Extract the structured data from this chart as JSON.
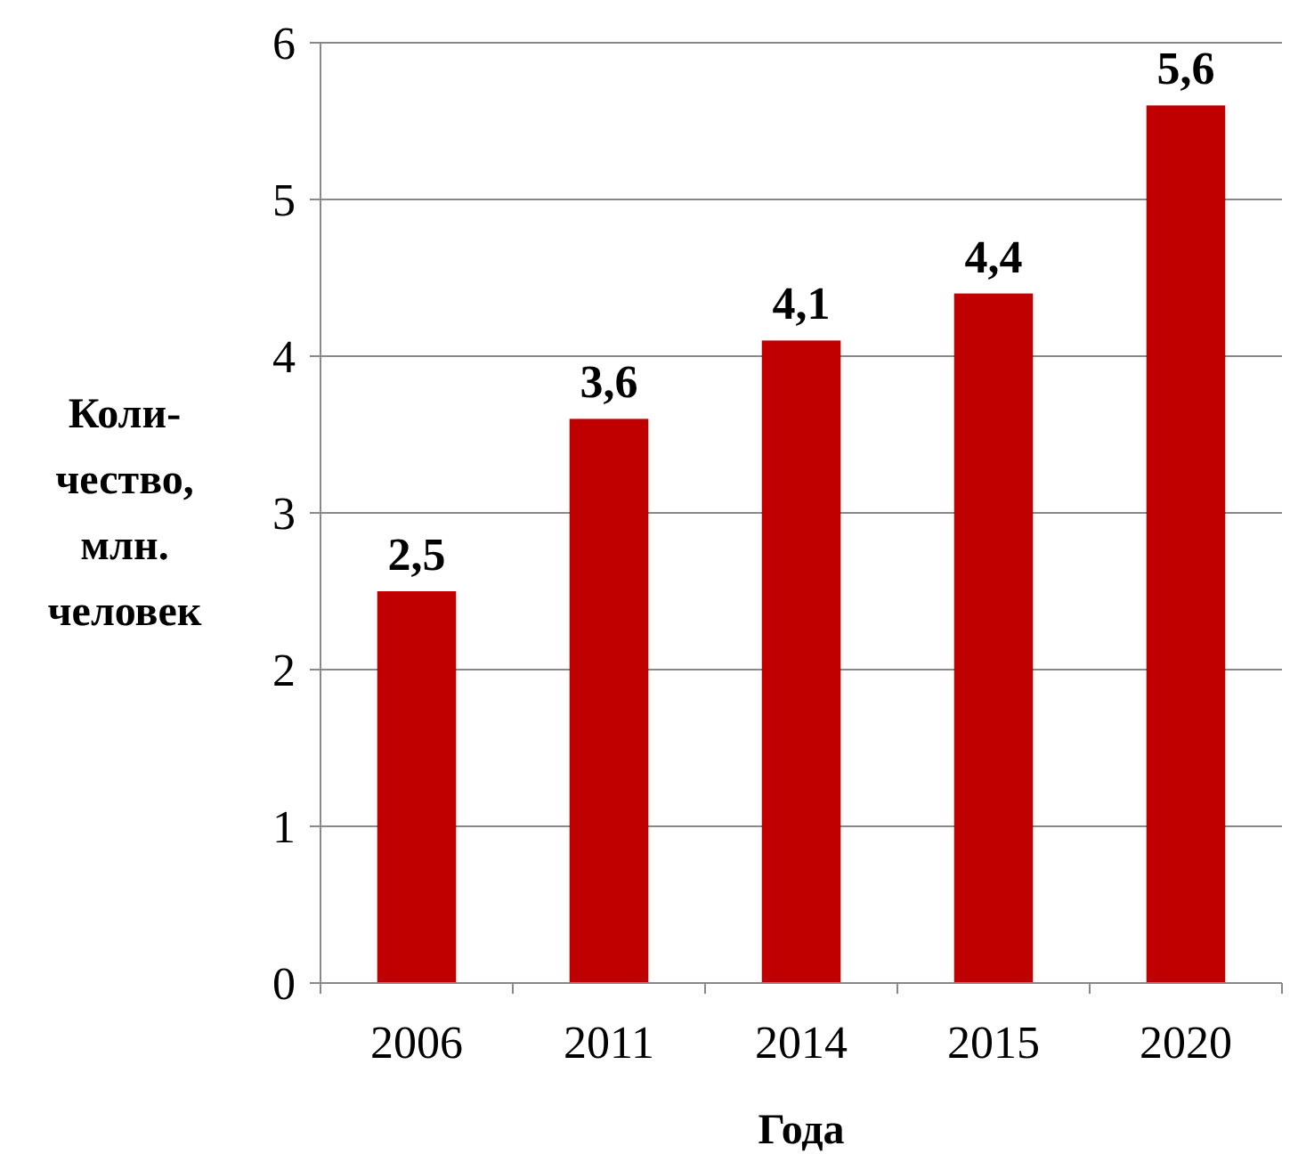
{
  "chart_data": {
    "type": "bar",
    "xlabel": "Года",
    "ylabel": "Коли-\nчество,\nмлн.\nчеловек",
    "categories": [
      "2006",
      "2011",
      "2014",
      "2015",
      "2020"
    ],
    "values": [
      2.5,
      3.6,
      4.1,
      4.4,
      5.6
    ],
    "value_labels": [
      "2,5",
      "3,6",
      "4,1",
      "4,4",
      "5,6"
    ],
    "color": "#c00000",
    "ylim": [
      0,
      6
    ],
    "yticks": [
      0,
      1,
      2,
      3,
      4,
      5,
      6
    ],
    "grid": "y"
  }
}
